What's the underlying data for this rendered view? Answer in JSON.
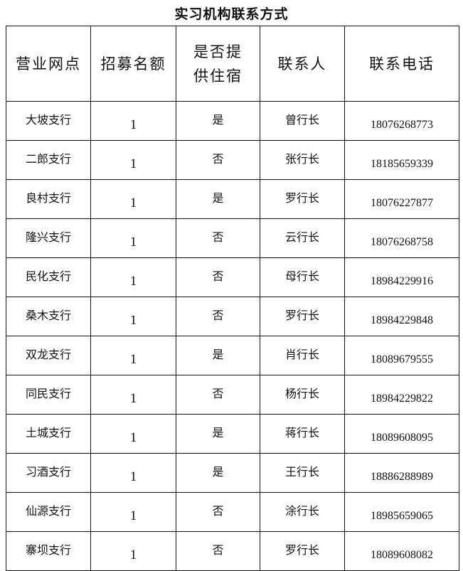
{
  "title": "实习机构联系方式",
  "headers": [
    "营业网点",
    "招募名额",
    "是否提供住宿",
    "联系人",
    "联系电话"
  ],
  "rows": [
    {
      "branch": "大坡支行",
      "quota": "1",
      "lodging": "是",
      "contact": "曾行长",
      "phone": "18076268773"
    },
    {
      "branch": "二郎支行",
      "quota": "1",
      "lodging": "否",
      "contact": "张行长",
      "phone": "18185659339"
    },
    {
      "branch": "良村支行",
      "quota": "1",
      "lodging": "是",
      "contact": "罗行长",
      "phone": "18076227877"
    },
    {
      "branch": "隆兴支行",
      "quota": "1",
      "lodging": "否",
      "contact": "云行长",
      "phone": "18076268758"
    },
    {
      "branch": "民化支行",
      "quota": "1",
      "lodging": "否",
      "contact": "母行长",
      "phone": "18984229916"
    },
    {
      "branch": "桑木支行",
      "quota": "1",
      "lodging": "否",
      "contact": "罗行长",
      "phone": "18984229848"
    },
    {
      "branch": "双龙支行",
      "quota": "1",
      "lodging": "是",
      "contact": "肖行长",
      "phone": "18089679555"
    },
    {
      "branch": "同民支行",
      "quota": "1",
      "lodging": "否",
      "contact": "杨行长",
      "phone": "18984229822"
    },
    {
      "branch": "土城支行",
      "quota": "1",
      "lodging": "是",
      "contact": "蒋行长",
      "phone": "18089608095"
    },
    {
      "branch": "习酒支行",
      "quota": "1",
      "lodging": "是",
      "contact": "王行长",
      "phone": "18886288989"
    },
    {
      "branch": "仙源支行",
      "quota": "1",
      "lodging": "否",
      "contact": "涂行长",
      "phone": "18985659065"
    },
    {
      "branch": "寨坝支行",
      "quota": "1",
      "lodging": "否",
      "contact": "罗行长",
      "phone": "18089608082"
    }
  ]
}
